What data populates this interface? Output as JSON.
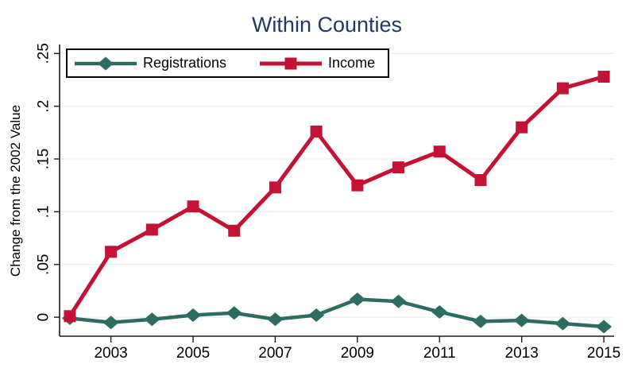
{
  "colors": {
    "registrations": "#2D6C61",
    "income": "#C41236",
    "title": "#1F3A63",
    "grid": "#E3ECF4",
    "axis": "#1A1A1A",
    "text": "#000000",
    "background": "#FFFFFF",
    "legend_border": "#000000"
  },
  "chart_data": {
    "type": "line",
    "title": "Within Counties",
    "xlabel": "",
    "ylabel": "Change from the 2002 Value",
    "x": [
      2002,
      2003,
      2004,
      2005,
      2006,
      2007,
      2008,
      2009,
      2010,
      2011,
      2012,
      2013,
      2014,
      2015
    ],
    "series": [
      {
        "name": "Registrations",
        "color": "#2D6C61",
        "marker": "diamond",
        "line_width": 4.5,
        "values": [
          -0.001,
          -0.005,
          -0.002,
          0.002,
          0.004,
          -0.002,
          0.002,
          0.017,
          0.015,
          0.005,
          -0.004,
          -0.003,
          -0.006,
          -0.009
        ]
      },
      {
        "name": "Income",
        "color": "#C41236",
        "marker": "square",
        "line_width": 5,
        "values": [
          0.001,
          0.062,
          0.083,
          0.105,
          0.082,
          0.123,
          0.176,
          0.125,
          0.142,
          0.157,
          0.13,
          0.18,
          0.217,
          0.228
        ]
      }
    ],
    "xlim": [
      2001.75,
      2015.25
    ],
    "ylim": [
      -0.018,
      0.2585
    ],
    "yticks": [
      0,
      0.05,
      0.1,
      0.15,
      0.2,
      0.25
    ],
    "ytick_labels": [
      "0",
      ".05",
      ".1",
      ".15",
      ".2",
      ".25"
    ],
    "xticks": [
      2003,
      2005,
      2007,
      2009,
      2011,
      2013,
      2015
    ],
    "xtick_labels": [
      "2003",
      "2005",
      "2007",
      "2009",
      "2011",
      "2013",
      "2015"
    ],
    "grid": true,
    "legend_position": "top-left-inside"
  }
}
